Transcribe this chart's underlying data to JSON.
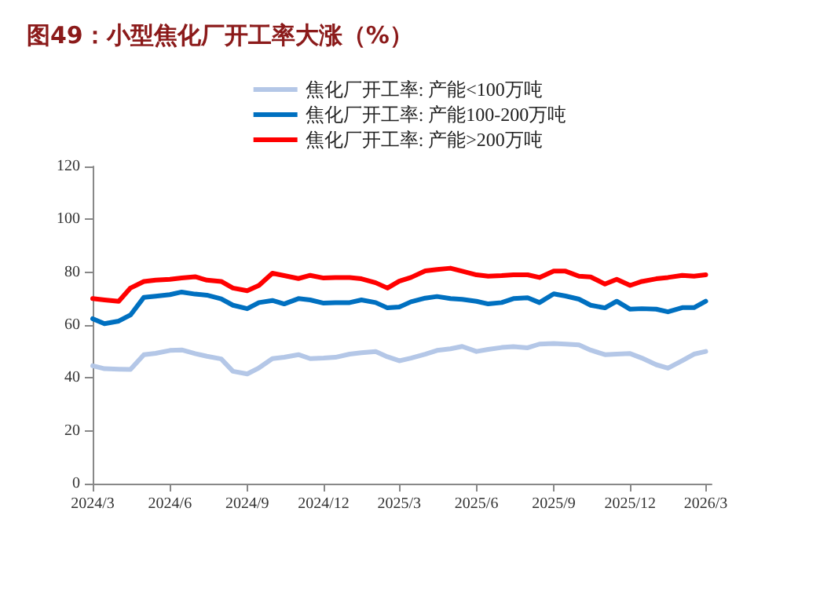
{
  "chart_data": {
    "type": "line",
    "title": "图49：小型焦化厂开工率大涨（%）",
    "x": [
      "2024-03-01",
      "2024-03-15",
      "2024-04-01",
      "2024-04-15",
      "2024-05-01",
      "2024-05-15",
      "2024-06-01",
      "2024-06-15",
      "2024-07-01",
      "2024-07-15",
      "2024-08-01",
      "2024-08-15",
      "2024-09-01",
      "2024-09-15",
      "2024-10-01",
      "2024-10-15",
      "2024-11-01",
      "2024-11-15",
      "2024-12-01",
      "2024-12-15",
      "2025-01-01",
      "2025-01-15",
      "2025-02-01",
      "2025-02-15",
      "2025-03-01",
      "2025-03-15",
      "2025-04-01",
      "2025-04-15",
      "2025-05-01",
      "2025-05-15",
      "2025-06-01",
      "2025-06-15",
      "2025-07-01",
      "2025-07-15",
      "2025-08-01",
      "2025-08-15",
      "2025-09-01",
      "2025-09-15",
      "2025-10-01",
      "2025-10-15",
      "2025-11-01",
      "2025-11-15",
      "2025-12-01",
      "2025-12-15",
      "2026-01-01",
      "2026-01-15",
      "2026-02-01",
      "2026-02-15",
      "2026-03-01"
    ],
    "series": [
      {
        "name": "焦化厂开工率: 产能<100万吨",
        "color": "#b4c7e7",
        "values": [
          44.6,
          43.5,
          43.3,
          43.2,
          48.8,
          49.3,
          50.4,
          50.6,
          49.2,
          48.2,
          47.2,
          42.5,
          41.5,
          43.8,
          47.3,
          47.8,
          48.8,
          47.3,
          47.5,
          47.8,
          49,
          49.5,
          50,
          48,
          46.5,
          47.5,
          49,
          50.4,
          51,
          51.9,
          50,
          50.8,
          51.5,
          51.8,
          51.4,
          52.8,
          53,
          52.8,
          52.5,
          50.5,
          48.8,
          49,
          49.2,
          47.5,
          45,
          43.7,
          46.5,
          49,
          50
        ]
      },
      {
        "name": "焦化厂开工率: 产能100-200万吨",
        "color": "#0070c0",
        "values": [
          62.4,
          60.5,
          61.5,
          63.8,
          70.5,
          70.9,
          71.5,
          72.5,
          71.7,
          71.3,
          69.9,
          67.5,
          66.2,
          68.5,
          69.3,
          68,
          70,
          69.5,
          68.3,
          68.5,
          68.5,
          69.5,
          68.5,
          66.5,
          66.8,
          68.8,
          70.2,
          70.8,
          70,
          69.7,
          69,
          68,
          68.5,
          70,
          70.3,
          68.5,
          71.8,
          71,
          69.8,
          67.5,
          66.5,
          69,
          66,
          66.2,
          66,
          65,
          66.6,
          66.6,
          69
        ]
      },
      {
        "name": "焦化厂开工率: 产能>200万吨",
        "color": "#ff0000",
        "values": [
          70,
          69.5,
          69,
          74,
          76.5,
          77,
          77.3,
          77.8,
          78.3,
          77,
          76.5,
          74,
          73,
          75,
          79.6,
          78.7,
          77.6,
          78.8,
          77.8,
          78,
          78,
          77.5,
          76,
          74,
          76.6,
          78,
          80.5,
          81,
          81.5,
          80.4,
          79,
          78.5,
          78.7,
          79,
          79,
          78,
          80.4,
          80.4,
          78.5,
          78.2,
          75.5,
          77.3,
          75,
          76.5,
          77.5,
          78,
          78.8,
          78.5,
          79
        ]
      }
    ],
    "xlim": [
      "2024-03-01",
      "2026-03-08"
    ],
    "xticks": [
      {
        "value": "2024-03-01",
        "label": "2024/3"
      },
      {
        "value": "2024-06-01",
        "label": "2024/6"
      },
      {
        "value": "2024-09-01",
        "label": "2024/9"
      },
      {
        "value": "2024-12-01",
        "label": "2024/12"
      },
      {
        "value": "2025-03-01",
        "label": "2025/3"
      },
      {
        "value": "2025-06-01",
        "label": "2025/6"
      },
      {
        "value": "2025-09-01",
        "label": "2025/9"
      },
      {
        "value": "2025-12-01",
        "label": "2025/12"
      },
      {
        "value": "2026-03-01",
        "label": "2026/3"
      }
    ],
    "ylim": [
      0,
      120
    ],
    "yticks": [
      0,
      20,
      40,
      60,
      80,
      100,
      120
    ],
    "grid": false,
    "legend": "top",
    "marker": "none",
    "line_style": "solid"
  }
}
